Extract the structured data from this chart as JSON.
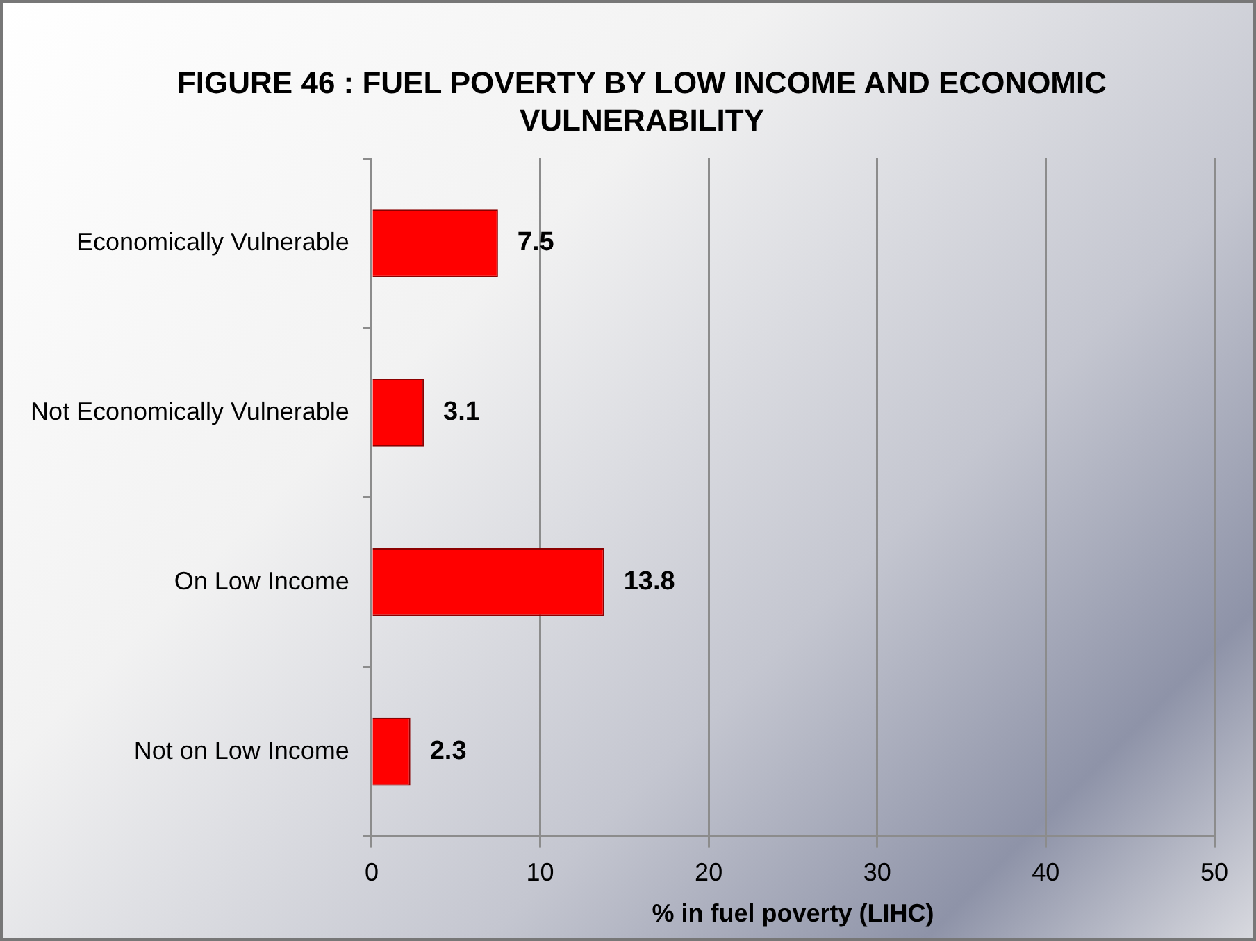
{
  "chart_data": {
    "type": "bar",
    "orientation": "horizontal",
    "title": "FIGURE 46 : FUEL POVERTY BY LOW INCOME AND ECONOMIC VULNERABILITY",
    "xlabel": "% in fuel poverty (LIHC)",
    "categories": [
      "Economically Vulnerable",
      "Not Economically Vulnerable",
      "On Low Income",
      "Not on Low Income"
    ],
    "values": [
      7.5,
      3.1,
      13.8,
      2.3
    ],
    "data_labels": true,
    "color": "#ff0000",
    "xlim": [
      0,
      50
    ],
    "xticks": [
      0,
      10,
      20,
      30,
      40,
      50
    ],
    "grid": "x",
    "legend": false
  }
}
